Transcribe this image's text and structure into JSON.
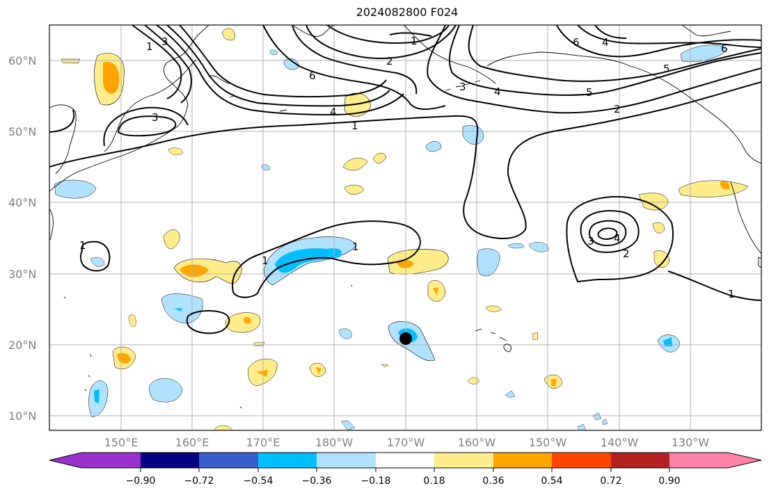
{
  "title": "2024082800 F024",
  "axes": {
    "lat_labels": [
      "60°N",
      "50°N",
      "40°N",
      "30°N",
      "20°N",
      "10°N"
    ],
    "lon_labels": [
      "150°E",
      "160°E",
      "170°E",
      "180°W",
      "170°W",
      "160°W",
      "150°W",
      "140°W",
      "130°W"
    ]
  },
  "colorbar": {
    "colors": [
      "#9932cc",
      "#000080",
      "#3a5fcd",
      "#00bfff",
      "#b0e2ff",
      "#ffffff",
      "#ffec8b",
      "#ffa500",
      "#ff4500",
      "#b22222",
      "#ff82ab"
    ],
    "labels": [
      "−0.90",
      "−0.72",
      "−0.54",
      "−0.36",
      "−0.18",
      "0.18",
      "0.36",
      "0.54",
      "0.72",
      "0.90"
    ]
  },
  "contour_labels": [
    "1",
    "3",
    "4",
    "6",
    "2",
    "1",
    "3",
    "4",
    "5",
    "2",
    "6",
    "5",
    "6",
    "4",
    "3",
    "4",
    "2",
    "1",
    "1",
    "1",
    "1",
    "3",
    "1"
  ]
}
